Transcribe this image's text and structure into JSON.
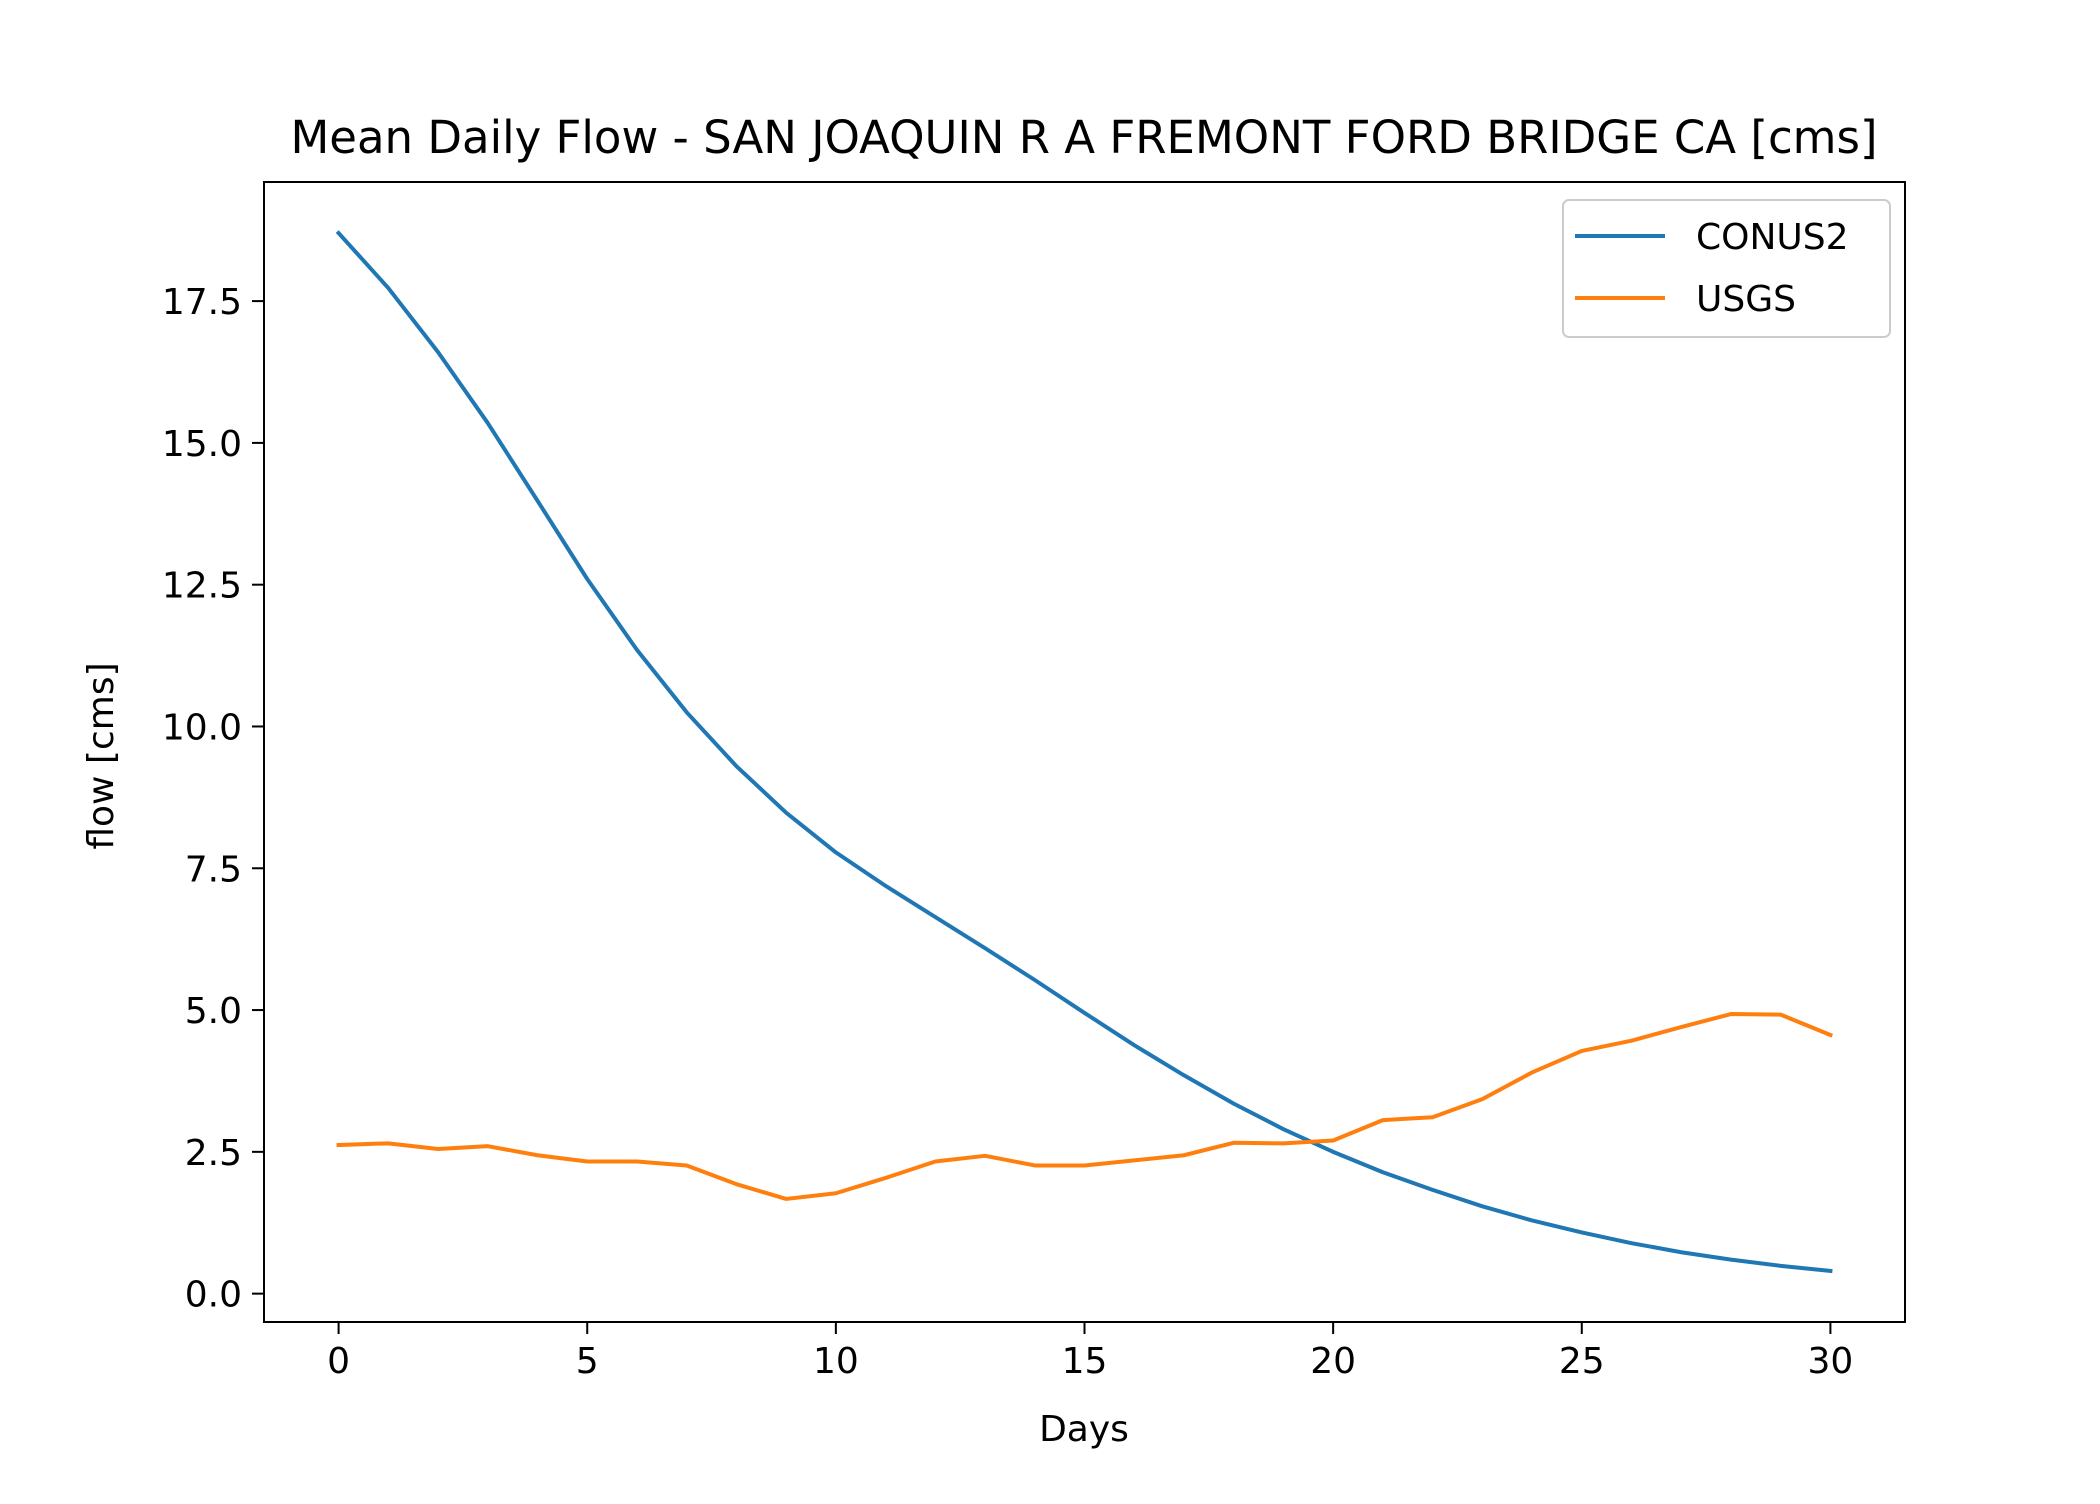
{
  "chart_data": {
    "type": "line",
    "title": "Mean Daily Flow - SAN JOAQUIN R A FREMONT FORD BRIDGE CA [cms]",
    "xlabel": "Days",
    "ylabel": "flow [cms]",
    "xlim": [
      -1.5,
      31.5
    ],
    "ylim": [
      -0.5,
      19.6
    ],
    "xticks": [
      0,
      5,
      10,
      15,
      20,
      25,
      30
    ],
    "xtick_labels": [
      "0",
      "5",
      "10",
      "15",
      "20",
      "25",
      "30"
    ],
    "yticks": [
      0.0,
      2.5,
      5.0,
      7.5,
      10.0,
      12.5,
      15.0,
      17.5
    ],
    "ytick_labels": [
      "0.0",
      "2.5",
      "5.0",
      "7.5",
      "10.0",
      "12.5",
      "15.0",
      "17.5"
    ],
    "grid": false,
    "legend_position": "top-right",
    "x": [
      0,
      1,
      2,
      3,
      4,
      5,
      6,
      7,
      8,
      9,
      10,
      11,
      12,
      13,
      14,
      15,
      16,
      17,
      18,
      19,
      20,
      21,
      22,
      23,
      24,
      25,
      26,
      27,
      28,
      29,
      30
    ],
    "series": [
      {
        "name": "CONUS2",
        "color": "#1f77b4",
        "values": [
          18.7,
          17.73,
          16.6,
          15.35,
          13.98,
          12.6,
          11.35,
          10.25,
          9.3,
          8.48,
          7.78,
          7.19,
          6.64,
          6.09,
          5.53,
          4.95,
          4.38,
          3.85,
          3.35,
          2.9,
          2.5,
          2.14,
          1.83,
          1.54,
          1.29,
          1.08,
          0.89,
          0.73,
          0.6,
          0.49,
          0.4
        ]
      },
      {
        "name": "USGS",
        "color": "#ff7f0e",
        "values": [
          2.62,
          2.65,
          2.55,
          2.6,
          2.44,
          2.33,
          2.33,
          2.26,
          1.93,
          1.67,
          1.77,
          2.04,
          2.33,
          2.43,
          2.26,
          2.26,
          2.35,
          2.44,
          2.66,
          2.65,
          2.7,
          3.06,
          3.11,
          3.43,
          3.9,
          4.28,
          4.46,
          4.7,
          4.93,
          4.92,
          4.56
        ]
      }
    ]
  }
}
